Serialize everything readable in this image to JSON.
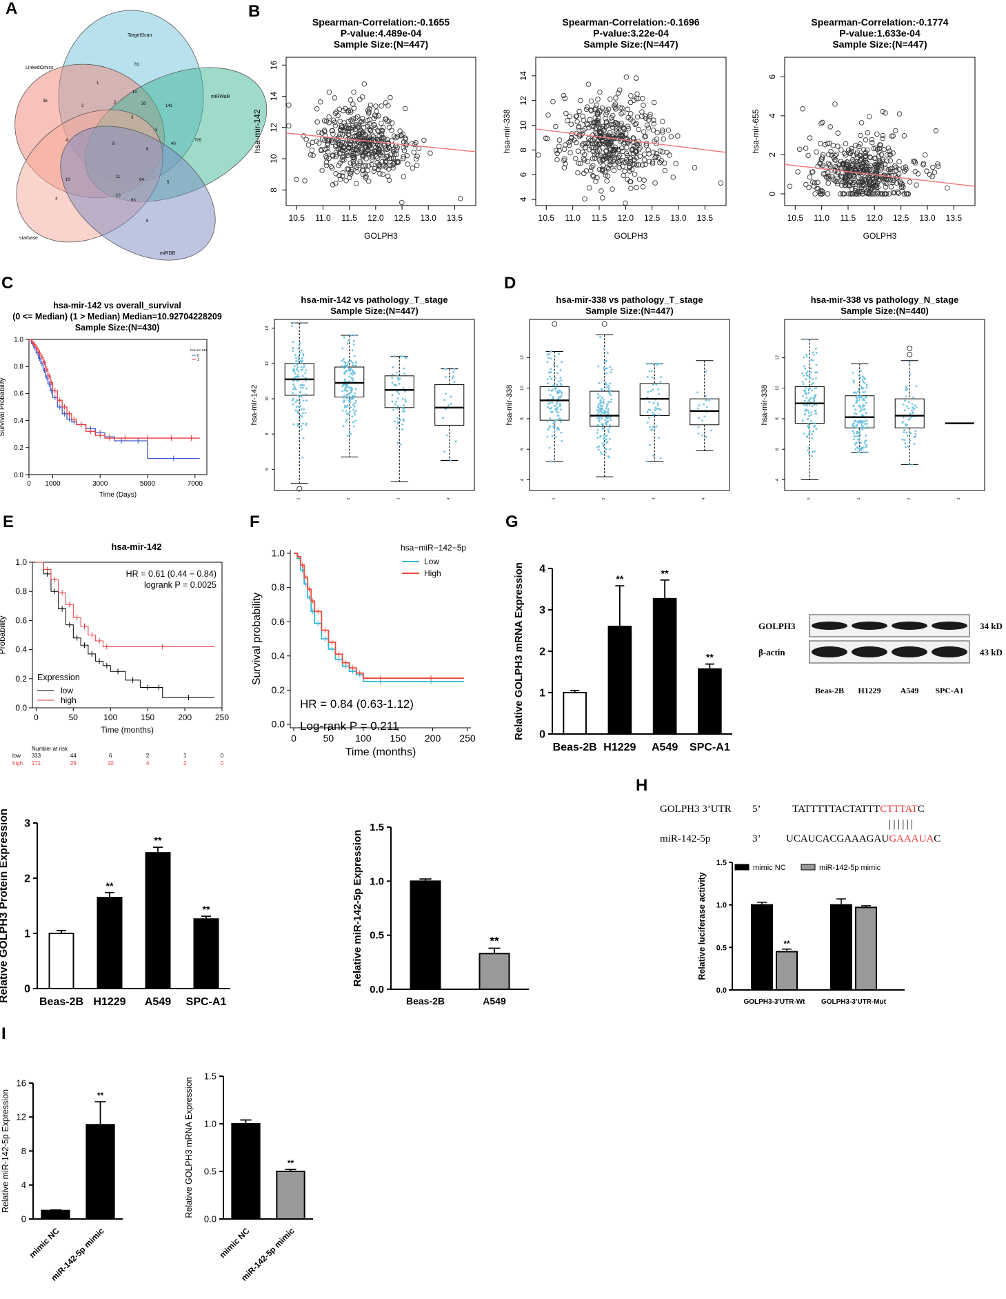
{
  "panel_labels": [
    "A",
    "B",
    "C",
    "D",
    "E",
    "F",
    "G",
    "H",
    "I"
  ],
  "venn": {
    "sets": [
      {
        "name": "TargetScan",
        "color": "#72c3dc"
      },
      {
        "name": "LinkedOmics",
        "color": "#ef8577"
      },
      {
        "name": "miRWalk",
        "color": "#3fb597"
      },
      {
        "name": "starbase",
        "color": "#f6a99a"
      },
      {
        "name": "miRDB",
        "color": "#7b8cc4"
      }
    ],
    "counts": [
      "81",
      "1",
      "10",
      "141",
      "36",
      "2",
      "30",
      "2",
      "3",
      "705",
      "3",
      "9",
      "6",
      "40",
      "4",
      "11",
      "64",
      "5",
      "10",
      "10",
      "63",
      "8",
      "4"
    ]
  },
  "chart_data": [
    {
      "id": "B1",
      "type": "scatter",
      "title": [
        "Spearman-Correlation:-0.1655",
        "P-value:4.489e-04",
        "Sample Size:(N=447)"
      ],
      "xlabel": "GOLPH3",
      "ylabel": "hsa-mir-142",
      "xlim": [
        10.3,
        13.9
      ],
      "ylim": [
        7,
        16.5
      ],
      "xticks": [
        "10.5",
        "11.0",
        "11.5",
        "12.0",
        "12.5",
        "13.0",
        "13.5"
      ],
      "yticks": [
        "8",
        "10",
        "12",
        "14",
        "16"
      ],
      "fit": {
        "intercept": 15.08,
        "slope": -0.3333
      },
      "n": 447,
      "mean_y": 11.0,
      "sd_y": 1.2
    },
    {
      "id": "B2",
      "type": "scatter",
      "title": [
        "Spearman-Correlation:-0.1696",
        "P-value:3.22e-04",
        "Sample Size:(N=447)"
      ],
      "xlabel": "GOLPH3",
      "ylabel": "hsa-mir-338",
      "xlim": [
        10.3,
        13.9
      ],
      "ylim": [
        3.5,
        15.5
      ],
      "xticks": [
        "10.5",
        "11.0",
        "11.5",
        "12.0",
        "12.5",
        "13.0",
        "13.5"
      ],
      "yticks": [
        "4",
        "6",
        "8",
        "10",
        "12",
        "14"
      ],
      "fit": {
        "intercept": 15.12,
        "slope": -0.5263
      },
      "n": 447,
      "mean_y": 8.8,
      "sd_y": 1.8
    },
    {
      "id": "B3",
      "type": "scatter",
      "title": [
        "Spearman-Correlation:-0.1774",
        "P-value:1.633e-04",
        "Sample Size:(N=447)"
      ],
      "xlabel": "GOLPH3",
      "ylabel": "hsa-mir-655",
      "xlim": [
        10.3,
        13.9
      ],
      "ylim": [
        -0.6,
        7
      ],
      "xticks": [
        "10.5",
        "11.0",
        "11.5",
        "12.0",
        "12.5",
        "13.0",
        "13.5"
      ],
      "yticks": [
        "0",
        "2",
        "4",
        "6"
      ],
      "fit": {
        "intercept": 4.73,
        "slope": -0.3125
      },
      "n": 447,
      "mean_y": 0.9,
      "sd_y": 0.9
    },
    {
      "id": "C1",
      "type": "line",
      "title": [
        "hsa-mir-142 vs overall_survival",
        "(0 <= Median) (1 > Median) Median=10.92704228209",
        "Sample Size:(N=430)"
      ],
      "xlabel": "Time (Days)",
      "ylabel": "Survival Probability",
      "xlim": [
        0,
        7500
      ],
      "ylim": [
        0,
        1
      ],
      "xticks": [
        "0",
        "1000",
        "3000",
        "5000",
        "7000"
      ],
      "yticks": [
        "0.0",
        "0.2",
        "0.4",
        "0.6",
        "0.8",
        "1.0"
      ],
      "legend_title": "hsa-mir-142",
      "legend": [
        "0",
        "1"
      ],
      "series": [
        {
          "name": "0",
          "color": "#3a55c8",
          "x": [
            0,
            100,
            200,
            300,
            400,
            500,
            600,
            700,
            800,
            900,
            1000,
            1200,
            1400,
            1600,
            1800,
            2000,
            2400,
            2800,
            3200,
            3600,
            4200,
            5000,
            5000,
            7200
          ],
          "y": [
            1,
            0.97,
            0.94,
            0.9,
            0.86,
            0.82,
            0.77,
            0.72,
            0.67,
            0.62,
            0.57,
            0.5,
            0.45,
            0.41,
            0.39,
            0.37,
            0.34,
            0.31,
            0.28,
            0.25,
            0.25,
            0.25,
            0.12,
            0.12
          ]
        },
        {
          "name": "1",
          "color": "#e8383d",
          "x": [
            0,
            100,
            200,
            300,
            400,
            500,
            600,
            700,
            800,
            900,
            1000,
            1200,
            1400,
            1600,
            1800,
            2000,
            2400,
            2800,
            3200,
            3600,
            4500,
            5500,
            6500,
            7200
          ],
          "y": [
            1,
            0.98,
            0.96,
            0.93,
            0.9,
            0.87,
            0.83,
            0.78,
            0.73,
            0.68,
            0.62,
            0.55,
            0.5,
            0.45,
            0.41,
            0.37,
            0.32,
            0.29,
            0.27,
            0.27,
            0.27,
            0.27,
            0.27,
            0.27
          ]
        }
      ]
    },
    {
      "id": "C2",
      "type": "box",
      "title": [
        "hsa-mir-142 vs pathology_T_stage",
        "Sample Size:(N=447)"
      ],
      "ylabel": "hsa-mir-142",
      "ylim": [
        4.8,
        14.5
      ],
      "yticks": [
        "6",
        "8",
        "10",
        "12",
        "14"
      ],
      "categories": [
        "1",
        "2",
        "3",
        "4"
      ],
      "boxes": [
        {
          "min": 5.2,
          "q1": 10.2,
          "med": 11.1,
          "q3": 12.0,
          "max": 14.3
        },
        {
          "min": 6.7,
          "q1": 10.1,
          "med": 10.9,
          "q3": 11.8,
          "max": 13.6
        },
        {
          "min": 5.3,
          "q1": 9.5,
          "med": 10.5,
          "q3": 11.3,
          "max": 12.4
        },
        {
          "min": 6.5,
          "q1": 8.5,
          "med": 9.5,
          "q3": 10.8,
          "max": 11.7
        }
      ],
      "outliers": [
        [
          0,
          4.9
        ]
      ]
    },
    {
      "id": "D1",
      "type": "box",
      "title": [
        "hsa-mir-338 vs pathology_T_stage",
        "Sample Size:(N=447)"
      ],
      "ylabel": "hsa-mir-338",
      "ylim": [
        3.3,
        14.5
      ],
      "yticks": [
        "4",
        "6",
        "8",
        "10",
        "12"
      ],
      "categories": [
        "1",
        "2",
        "3",
        "4"
      ],
      "boxes": [
        {
          "min": 5.2,
          "q1": 7.9,
          "med": 9.2,
          "q3": 10.1,
          "max": 12.4
        },
        {
          "min": 4.2,
          "q1": 7.5,
          "med": 8.2,
          "q3": 9.8,
          "max": 13.5
        },
        {
          "min": 5.2,
          "q1": 8.2,
          "med": 9.3,
          "q3": 10.3,
          "max": 11.6
        },
        {
          "min": 5.9,
          "q1": 7.6,
          "med": 8.5,
          "q3": 9.3,
          "max": 11.8
        }
      ],
      "outliers": [
        [
          0,
          14.2
        ],
        [
          1,
          14.2
        ]
      ]
    },
    {
      "id": "D2",
      "type": "box",
      "title": [
        "hsa-mir-338 vs pathology_N_stage",
        "Sample Size:(N=440)"
      ],
      "ylabel": "hsa-mir-338",
      "ylim": [
        3.3,
        14.5
      ],
      "yticks": [
        "4",
        "6",
        "8",
        "10",
        "12"
      ],
      "categories": [
        "0",
        "1",
        "2",
        "3"
      ],
      "boxes": [
        {
          "min": 4.0,
          "q1": 7.7,
          "med": 9.0,
          "q3": 10.1,
          "max": 13.2
        },
        {
          "min": 5.8,
          "q1": 7.4,
          "med": 8.1,
          "q3": 9.5,
          "max": 11.6
        },
        {
          "min": 5.0,
          "q1": 7.4,
          "med": 8.2,
          "q3": 9.3,
          "max": 11.8
        },
        {
          "min": 7.7,
          "q1": 7.7,
          "med": 7.7,
          "q3": 7.7,
          "max": 7.7
        }
      ],
      "outliers": [
        [
          2,
          12.2
        ],
        [
          2,
          12.6
        ]
      ]
    },
    {
      "id": "E",
      "type": "line",
      "title": [
        "hsa-mir-142"
      ],
      "xlabel": "Time (months)",
      "ylabel": "Probability",
      "xlim": [
        -5,
        250
      ],
      "ylim": [
        0,
        1
      ],
      "xticks": [
        "0",
        "50",
        "100",
        "150",
        "200",
        "250"
      ],
      "yticks": [
        "0.0",
        "0.2",
        "0.4",
        "0.6",
        "0.8",
        "1.0"
      ],
      "annotations": [
        "HR = 0.61 (0.44 − 0.84)",
        "logrank P = 0.0025"
      ],
      "legend_title": "Expression",
      "legend": [
        "low",
        "high"
      ],
      "series": [
        {
          "name": "low",
          "color": "#000000",
          "x": [
            0,
            10,
            20,
            30,
            40,
            50,
            60,
            70,
            80,
            90,
            100,
            120,
            140,
            160,
            170,
            240
          ],
          "y": [
            1,
            0.92,
            0.8,
            0.68,
            0.57,
            0.48,
            0.43,
            0.37,
            0.32,
            0.29,
            0.25,
            0.19,
            0.14,
            0.14,
            0.07,
            0.07
          ]
        },
        {
          "name": "high",
          "color": "#e8383d",
          "x": [
            0,
            10,
            20,
            30,
            40,
            50,
            60,
            70,
            80,
            90,
            100,
            240
          ],
          "y": [
            1,
            0.95,
            0.88,
            0.79,
            0.71,
            0.62,
            0.56,
            0.5,
            0.46,
            0.42,
            0.42,
            0.42
          ]
        }
      ],
      "risk_table": {
        "header": "Number at risk",
        "rows": [
          {
            "label": "low",
            "values": [
              "333",
              "44",
              "6",
              "2",
              "1",
              "0"
            ]
          },
          {
            "label": "high",
            "values": [
              "171",
              "29",
              "10",
              "4",
              "2",
              "0"
            ]
          }
        ]
      }
    },
    {
      "id": "F",
      "type": "line",
      "title": [],
      "xlabel": "Time (months)",
      "ylabel": "Survival probability",
      "xlim": [
        -5,
        255
      ],
      "ylim": [
        -0.02,
        1.02
      ],
      "xticks": [
        "0",
        "50",
        "100",
        "150",
        "200",
        "250"
      ],
      "yticks": [
        "0.0",
        "0.2",
        "0.4",
        "0.6",
        "0.8",
        "1.0"
      ],
      "annotations": [
        "HR = 0.84 (0.63-1.12)",
        "Log-rank P = 0.211"
      ],
      "legend_title": "hsa−miR−142−5p",
      "legend": [
        "Low",
        "High"
      ],
      "series": [
        {
          "name": "Low",
          "color": "#2bb8d8",
          "x": [
            0,
            5,
            10,
            15,
            20,
            25,
            30,
            40,
            50,
            60,
            70,
            80,
            90,
            100,
            150,
            245
          ],
          "y": [
            1,
            0.97,
            0.9,
            0.82,
            0.74,
            0.66,
            0.59,
            0.5,
            0.44,
            0.38,
            0.34,
            0.31,
            0.29,
            0.25,
            0.25,
            0.25
          ]
        },
        {
          "name": "High",
          "color": "#ec4b3c",
          "x": [
            0,
            5,
            10,
            15,
            20,
            25,
            30,
            40,
            50,
            60,
            70,
            80,
            90,
            100,
            150,
            245
          ],
          "y": [
            1,
            0.98,
            0.93,
            0.86,
            0.79,
            0.72,
            0.66,
            0.55,
            0.48,
            0.41,
            0.36,
            0.33,
            0.3,
            0.27,
            0.27,
            0.27
          ]
        }
      ]
    },
    {
      "id": "G1",
      "type": "bar",
      "ylabel": "Relative GOLPH3 mRNA Expression",
      "categories": [
        "Beas-2B",
        "H1229",
        "A549",
        "SPC-A1"
      ],
      "values": [
        1.0,
        2.6,
        3.27,
        1.57
      ],
      "errors": [
        0.05,
        0.98,
        0.45,
        0.12
      ],
      "sig": [
        "",
        "**",
        "**",
        "**"
      ],
      "ylim": [
        0,
        4
      ],
      "yticks": [
        "0",
        "1",
        "2",
        "3",
        "4"
      ]
    },
    {
      "id": "G3",
      "type": "bar",
      "ylabel": "Relative GOLPH3 Protein Expression",
      "categories": [
        "Beas-2B",
        "H1229",
        "A549",
        "SPC-A1"
      ],
      "values": [
        1.0,
        1.65,
        2.46,
        1.26
      ],
      "errors": [
        0.05,
        0.09,
        0.1,
        0.05
      ],
      "sig": [
        "",
        "**",
        "**",
        "**"
      ],
      "ylim": [
        0,
        3
      ],
      "yticks": [
        "0",
        "1",
        "2",
        "3"
      ]
    },
    {
      "id": "G4",
      "type": "bar",
      "ylabel": "Relative miR-142-5p Expression",
      "categories": [
        "Beas-2B",
        "A549"
      ],
      "values": [
        1.0,
        0.33
      ],
      "errors": [
        0.02,
        0.05
      ],
      "sig": [
        "",
        "**"
      ],
      "ylim": [
        0,
        1.5
      ],
      "yticks": [
        "0.0",
        "0.5",
        "1.0",
        "1.5"
      ]
    },
    {
      "id": "H",
      "type": "bar",
      "ylabel": "Relative luciferase activity",
      "categories": [
        "GOLPH3-3'UTR-Wt",
        "GOLPH3-3'UTR-Mut"
      ],
      "series": [
        {
          "name": "mimic NC",
          "values": [
            1.0,
            1.0
          ],
          "errors": [
            0.03,
            0.07
          ]
        },
        {
          "name": "miR-142-5p mimic",
          "values": [
            0.45,
            0.97
          ],
          "errors": [
            0.03,
            0.02
          ]
        }
      ],
      "sig": [
        "**",
        ""
      ],
      "ylim": [
        0,
        1.5
      ],
      "yticks": [
        "0.0",
        "0.5",
        "1.0",
        "1.5"
      ]
    },
    {
      "id": "I1",
      "type": "bar",
      "ylabel": "Relative miR-142-5p Expression",
      "categories": [
        "mimic NC",
        "miR-142-5p mimic"
      ],
      "values": [
        1.0,
        11.1
      ],
      "errors": [
        0.05,
        2.7
      ],
      "sig": [
        "",
        "**"
      ],
      "ylim": [
        0,
        16
      ],
      "yticks": [
        "0",
        "4",
        "8",
        "12",
        "16"
      ]
    },
    {
      "id": "I2",
      "type": "bar",
      "ylabel": "Relative GOLPH3 mRNA Expression",
      "categories": [
        "mimic NC",
        "miR-142-5p mimic"
      ],
      "values": [
        1.0,
        0.5
      ],
      "errors": [
        0.04,
        0.02
      ],
      "sig": [
        "",
        "**"
      ],
      "ylim": [
        0,
        1.5
      ],
      "yticks": [
        "0.0",
        "0.5",
        "1.0",
        "1.5"
      ]
    }
  ],
  "western_blot": {
    "rows": [
      {
        "label": "GOLPH3",
        "size": "34 kD"
      },
      {
        "label": "β-actin",
        "size": "43 kD"
      }
    ],
    "lanes": [
      "Beas-2B",
      "H1229",
      "A549",
      "SPC-A1"
    ]
  },
  "sequence": {
    "utr": {
      "label": "GOLPH3 3’UTR",
      "end": "5’",
      "prefix": "TATTTTTACTATTT",
      "highlight": "CTTTAT",
      "suffix": "C"
    },
    "mir": {
      "label": "miR-142-5p",
      "end": "3’",
      "prefix": "UCAUCACGAAAGAU",
      "highlight": "GAAAUA",
      "suffix": "C"
    },
    "bonds": "||||||"
  }
}
